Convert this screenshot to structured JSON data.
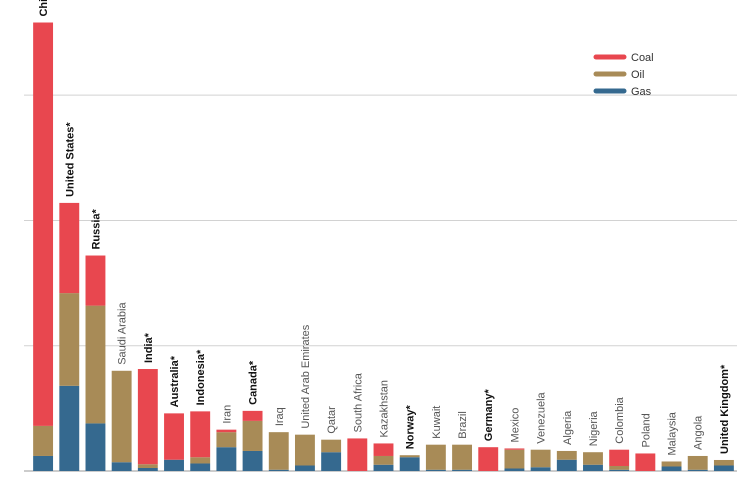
{
  "chart_data": {
    "type": "bar",
    "stacked": true,
    "title": "",
    "xlabel": "",
    "ylabel": "",
    "ylim": [
      0,
      1.8
    ],
    "grid": true,
    "legend_position": "top-right",
    "colors": {
      "Coal": "#e8474f",
      "Oil": "#a88b57",
      "Gas": "#35698f"
    },
    "categories": [
      {
        "label": "China*",
        "bold": true
      },
      {
        "label": "United States*",
        "bold": true
      },
      {
        "label": "Russia*",
        "bold": true
      },
      {
        "label": "Saudi Arabia",
        "bold": false
      },
      {
        "label": "India*",
        "bold": true
      },
      {
        "label": "Australia*",
        "bold": true
      },
      {
        "label": "Indonesia*",
        "bold": true
      },
      {
        "label": "Iran",
        "bold": false
      },
      {
        "label": "Canada*",
        "bold": true
      },
      {
        "label": "Iraq",
        "bold": false
      },
      {
        "label": "United Arab Emirates",
        "bold": false
      },
      {
        "label": "Qatar",
        "bold": false
      },
      {
        "label": "South Africa",
        "bold": false
      },
      {
        "label": "Kazakhstan",
        "bold": false
      },
      {
        "label": "Norway*",
        "bold": true
      },
      {
        "label": "Kuwait",
        "bold": false
      },
      {
        "label": "Brazil",
        "bold": false
      },
      {
        "label": "Germany*",
        "bold": true
      },
      {
        "label": "Mexico",
        "bold": false
      },
      {
        "label": "Venezuela",
        "bold": false
      },
      {
        "label": "Algeria",
        "bold": false
      },
      {
        "label": "Nigeria",
        "bold": false
      },
      {
        "label": "Colombia",
        "bold": false
      },
      {
        "label": "Poland",
        "bold": false
      },
      {
        "label": "Malaysia",
        "bold": false
      },
      {
        "label": "Angola",
        "bold": false
      },
      {
        "label": "United Kingdom*",
        "bold": true
      }
    ],
    "series": [
      {
        "name": "Gas",
        "values": [
          0.06,
          0.34,
          0.19,
          0.035,
          0.012,
          0.045,
          0.03,
          0.095,
          0.08,
          0.005,
          0.022,
          0.075,
          0.0,
          0.025,
          0.055,
          0.005,
          0.005,
          0.0,
          0.01,
          0.015,
          0.045,
          0.025,
          0.005,
          0.0,
          0.018,
          0.005,
          0.022
        ]
      },
      {
        "name": "Oil",
        "values": [
          0.12,
          0.37,
          0.47,
          0.365,
          0.015,
          0.0,
          0.025,
          0.06,
          0.12,
          0.15,
          0.123,
          0.05,
          0.0,
          0.035,
          0.008,
          0.1,
          0.1,
          0.0,
          0.075,
          0.07,
          0.035,
          0.05,
          0.015,
          0.0,
          0.02,
          0.055,
          0.022
        ]
      },
      {
        "name": "Coal",
        "values": [
          1.61,
          0.36,
          0.2,
          0.0,
          0.38,
          0.185,
          0.183,
          0.01,
          0.04,
          0.0,
          0.0,
          0.0,
          0.13,
          0.05,
          0.0,
          0.0,
          0.0,
          0.095,
          0.005,
          0.0,
          0.0,
          0.0,
          0.065,
          0.07,
          0.0,
          0.0,
          0.0
        ]
      }
    ],
    "legend": [
      "Coal",
      "Oil",
      "Gas"
    ]
  }
}
